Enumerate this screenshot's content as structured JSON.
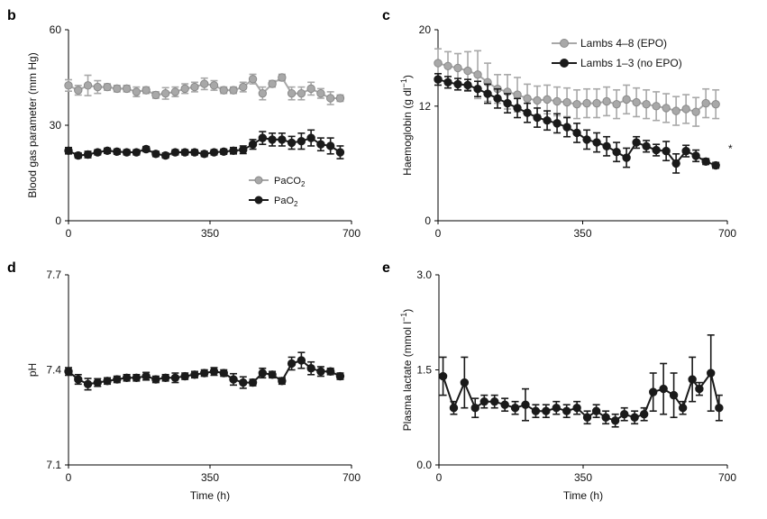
{
  "colors": {
    "grey_series": "#a8a8a8",
    "grey_edge": "#8a8a8a",
    "black_series": "#1a1a1a"
  },
  "chart_data": [
    {
      "panel": "b",
      "type": "line",
      "xlabel": "",
      "ylabel": "Blood gas parameter (mm Hg)",
      "xlim": [
        0,
        700
      ],
      "ylim": [
        0,
        60
      ],
      "xticks": [
        "0",
        "350",
        "700"
      ],
      "yticks": [
        "0",
        "30",
        "60"
      ],
      "legend": "bottom-right",
      "series": [
        {
          "name": "PaCO",
          "sub": "2",
          "style": "grey",
          "x": [
            0,
            24,
            48,
            72,
            96,
            120,
            144,
            168,
            192,
            216,
            240,
            264,
            288,
            312,
            336,
            360,
            384,
            408,
            432,
            456,
            480,
            504,
            528,
            552,
            576,
            600,
            624,
            648,
            672
          ],
          "y": [
            42.5,
            41,
            42.5,
            42,
            42,
            41.5,
            41.5,
            40.5,
            41,
            39.5,
            40,
            40.5,
            41.5,
            42,
            43,
            42.5,
            41,
            41,
            42,
            44.5,
            40,
            43,
            45,
            40,
            40,
            41.5,
            40,
            38.5,
            38.5
          ],
          "err": [
            1.8,
            1.5,
            3.2,
            2,
            1,
            1,
            1,
            1.5,
            1,
            1,
            1.8,
            1.5,
            1.5,
            1.5,
            1.8,
            1.5,
            1,
            1,
            1.5,
            1.5,
            2,
            1,
            1,
            2,
            2,
            2,
            1.5,
            2,
            1
          ]
        },
        {
          "name": "PaO",
          "sub": "2",
          "style": "black",
          "x": [
            0,
            24,
            48,
            72,
            96,
            120,
            144,
            168,
            192,
            216,
            240,
            264,
            288,
            312,
            336,
            360,
            384,
            408,
            432,
            456,
            480,
            504,
            528,
            552,
            576,
            600,
            624,
            648,
            672
          ],
          "y": [
            22,
            20.5,
            20.8,
            21.5,
            22,
            21.7,
            21.5,
            21.5,
            22.5,
            21,
            20.5,
            21.5,
            21.5,
            21.5,
            21,
            21.5,
            21.7,
            22,
            22.3,
            24,
            26,
            25.5,
            25.5,
            24.5,
            25,
            26,
            24,
            23.5,
            21.5
          ],
          "err": [
            1,
            0.8,
            1,
            0.8,
            0.8,
            0.8,
            0.8,
            0.8,
            0.8,
            0.8,
            0.8,
            0.8,
            0.8,
            0.8,
            0.8,
            0.8,
            0.8,
            1,
            1.2,
            1.5,
            2,
            2,
            2,
            2,
            2.5,
            2.5,
            2,
            2.5,
            2
          ]
        }
      ]
    },
    {
      "panel": "c",
      "type": "line",
      "xlabel": "",
      "ylabel": "Haemoglobin (g dl",
      "ylabel_sup": "−1",
      "ylabel_end": ")",
      "xlim": [
        0,
        700
      ],
      "ylim": [
        0,
        20
      ],
      "xticks": [
        "0",
        "350",
        "700"
      ],
      "yticks": [
        "0",
        "12",
        "20"
      ],
      "legend": "top-right",
      "annotation": "*",
      "series": [
        {
          "name": "Lambs 4–8 (EPO)",
          "style": "grey",
          "x": [
            0,
            24,
            48,
            72,
            96,
            120,
            144,
            168,
            192,
            216,
            240,
            264,
            288,
            312,
            336,
            360,
            384,
            408,
            432,
            456,
            480,
            504,
            528,
            552,
            576,
            600,
            624,
            648,
            672
          ],
          "y": [
            16.5,
            16.2,
            16,
            15.7,
            15.3,
            14.5,
            13.8,
            13.5,
            13.2,
            12.8,
            12.6,
            12.7,
            12.5,
            12.4,
            12.2,
            12.3,
            12.3,
            12.5,
            12.2,
            12.7,
            12.4,
            12.2,
            12,
            11.8,
            11.5,
            11.7,
            11.4,
            12.3,
            12.2
          ],
          "err": [
            1.5,
            1.5,
            1.5,
            2,
            2.5,
            2,
            1.5,
            1.8,
            1.8,
            1.5,
            1.5,
            1.5,
            1.5,
            1.5,
            1.5,
            1.5,
            1.5,
            1.5,
            1.5,
            1.5,
            1.5,
            1.5,
            1.5,
            1.5,
            1.5,
            1.5,
            1.5,
            1.5,
            1.5
          ]
        },
        {
          "name": "Lambs 1–3 (no EPO)",
          "style": "black",
          "x": [
            0,
            24,
            48,
            72,
            96,
            120,
            144,
            168,
            192,
            216,
            240,
            264,
            288,
            312,
            336,
            360,
            384,
            408,
            432,
            456,
            480,
            504,
            528,
            552,
            576,
            600,
            624,
            648,
            672
          ],
          "y": [
            14.8,
            14.5,
            14.3,
            14.2,
            13.8,
            13.3,
            12.8,
            12.3,
            11.8,
            11.3,
            10.8,
            10.5,
            10.2,
            9.8,
            9.2,
            8.5,
            8.2,
            7.8,
            7.2,
            6.6,
            8.2,
            7.8,
            7.4,
            7.3,
            6,
            7.3,
            6.8,
            6.2,
            5.8
          ],
          "err": [
            0.6,
            0.6,
            0.6,
            0.6,
            0.8,
            1,
            1,
            1,
            1,
            1,
            1,
            1,
            1,
            1,
            1,
            1,
            1,
            1,
            1,
            1,
            0.6,
            0.6,
            0.6,
            1,
            1,
            0.6,
            0.6,
            0.3,
            0.3
          ]
        }
      ]
    },
    {
      "panel": "d",
      "type": "line",
      "xlabel": "Time (h)",
      "ylabel": "pH",
      "xlim": [
        0,
        700
      ],
      "ylim": [
        7.1,
        7.7
      ],
      "xticks": [
        "0",
        "350",
        "700"
      ],
      "yticks": [
        "7.1",
        "7.4",
        "7.7"
      ],
      "series": [
        {
          "name": "",
          "style": "black",
          "x": [
            0,
            24,
            48,
            72,
            96,
            120,
            144,
            168,
            192,
            216,
            240,
            264,
            288,
            312,
            336,
            360,
            384,
            408,
            432,
            456,
            480,
            504,
            528,
            552,
            576,
            600,
            624,
            648,
            672
          ],
          "y": [
            7.395,
            7.37,
            7.355,
            7.36,
            7.365,
            7.37,
            7.375,
            7.375,
            7.38,
            7.37,
            7.375,
            7.375,
            7.38,
            7.385,
            7.39,
            7.395,
            7.39,
            7.37,
            7.36,
            7.36,
            7.39,
            7.385,
            7.365,
            7.42,
            7.43,
            7.405,
            7.395,
            7.395,
            7.38
          ],
          "err": [
            0.012,
            0.015,
            0.018,
            0.012,
            0.01,
            0.01,
            0.01,
            0.01,
            0.012,
            0.01,
            0.01,
            0.015,
            0.01,
            0.01,
            0.01,
            0.012,
            0.01,
            0.018,
            0.018,
            0.01,
            0.015,
            0.01,
            0.01,
            0.02,
            0.025,
            0.02,
            0.015,
            0.01,
            0.01
          ]
        }
      ]
    },
    {
      "panel": "e",
      "type": "line",
      "xlabel": "Time (h)",
      "ylabel": "Plasma lactate (mmol l",
      "ylabel_sup": "−1",
      "ylabel_end": ")",
      "xlim": [
        0,
        700
      ],
      "ylim": [
        0,
        3.0
      ],
      "xticks": [
        "0",
        "350",
        "700"
      ],
      "yticks": [
        "0.0",
        "1.5",
        "3.0"
      ],
      "series": [
        {
          "name": "",
          "style": "black",
          "x": [
            10,
            36,
            62,
            88,
            110,
            135,
            160,
            185,
            210,
            235,
            260,
            285,
            310,
            335,
            360,
            382,
            405,
            428,
            450,
            475,
            498,
            520,
            545,
            570,
            592,
            615,
            632,
            660,
            680
          ],
          "y": [
            1.4,
            0.9,
            1.3,
            0.9,
            1.0,
            1.0,
            0.95,
            0.9,
            0.95,
            0.85,
            0.85,
            0.9,
            0.85,
            0.9,
            0.75,
            0.85,
            0.75,
            0.7,
            0.8,
            0.75,
            0.8,
            1.15,
            1.2,
            1.1,
            0.9,
            1.35,
            1.2,
            1.45,
            0.9
          ],
          "err": [
            0.3,
            0.1,
            0.4,
            0.15,
            0.1,
            0.1,
            0.1,
            0.1,
            0.25,
            0.1,
            0.1,
            0.1,
            0.1,
            0.1,
            0.1,
            0.1,
            0.1,
            0.1,
            0.1,
            0.1,
            0.1,
            0.3,
            0.4,
            0.35,
            0.1,
            0.35,
            0.1,
            0.6,
            0.2
          ]
        }
      ]
    }
  ]
}
